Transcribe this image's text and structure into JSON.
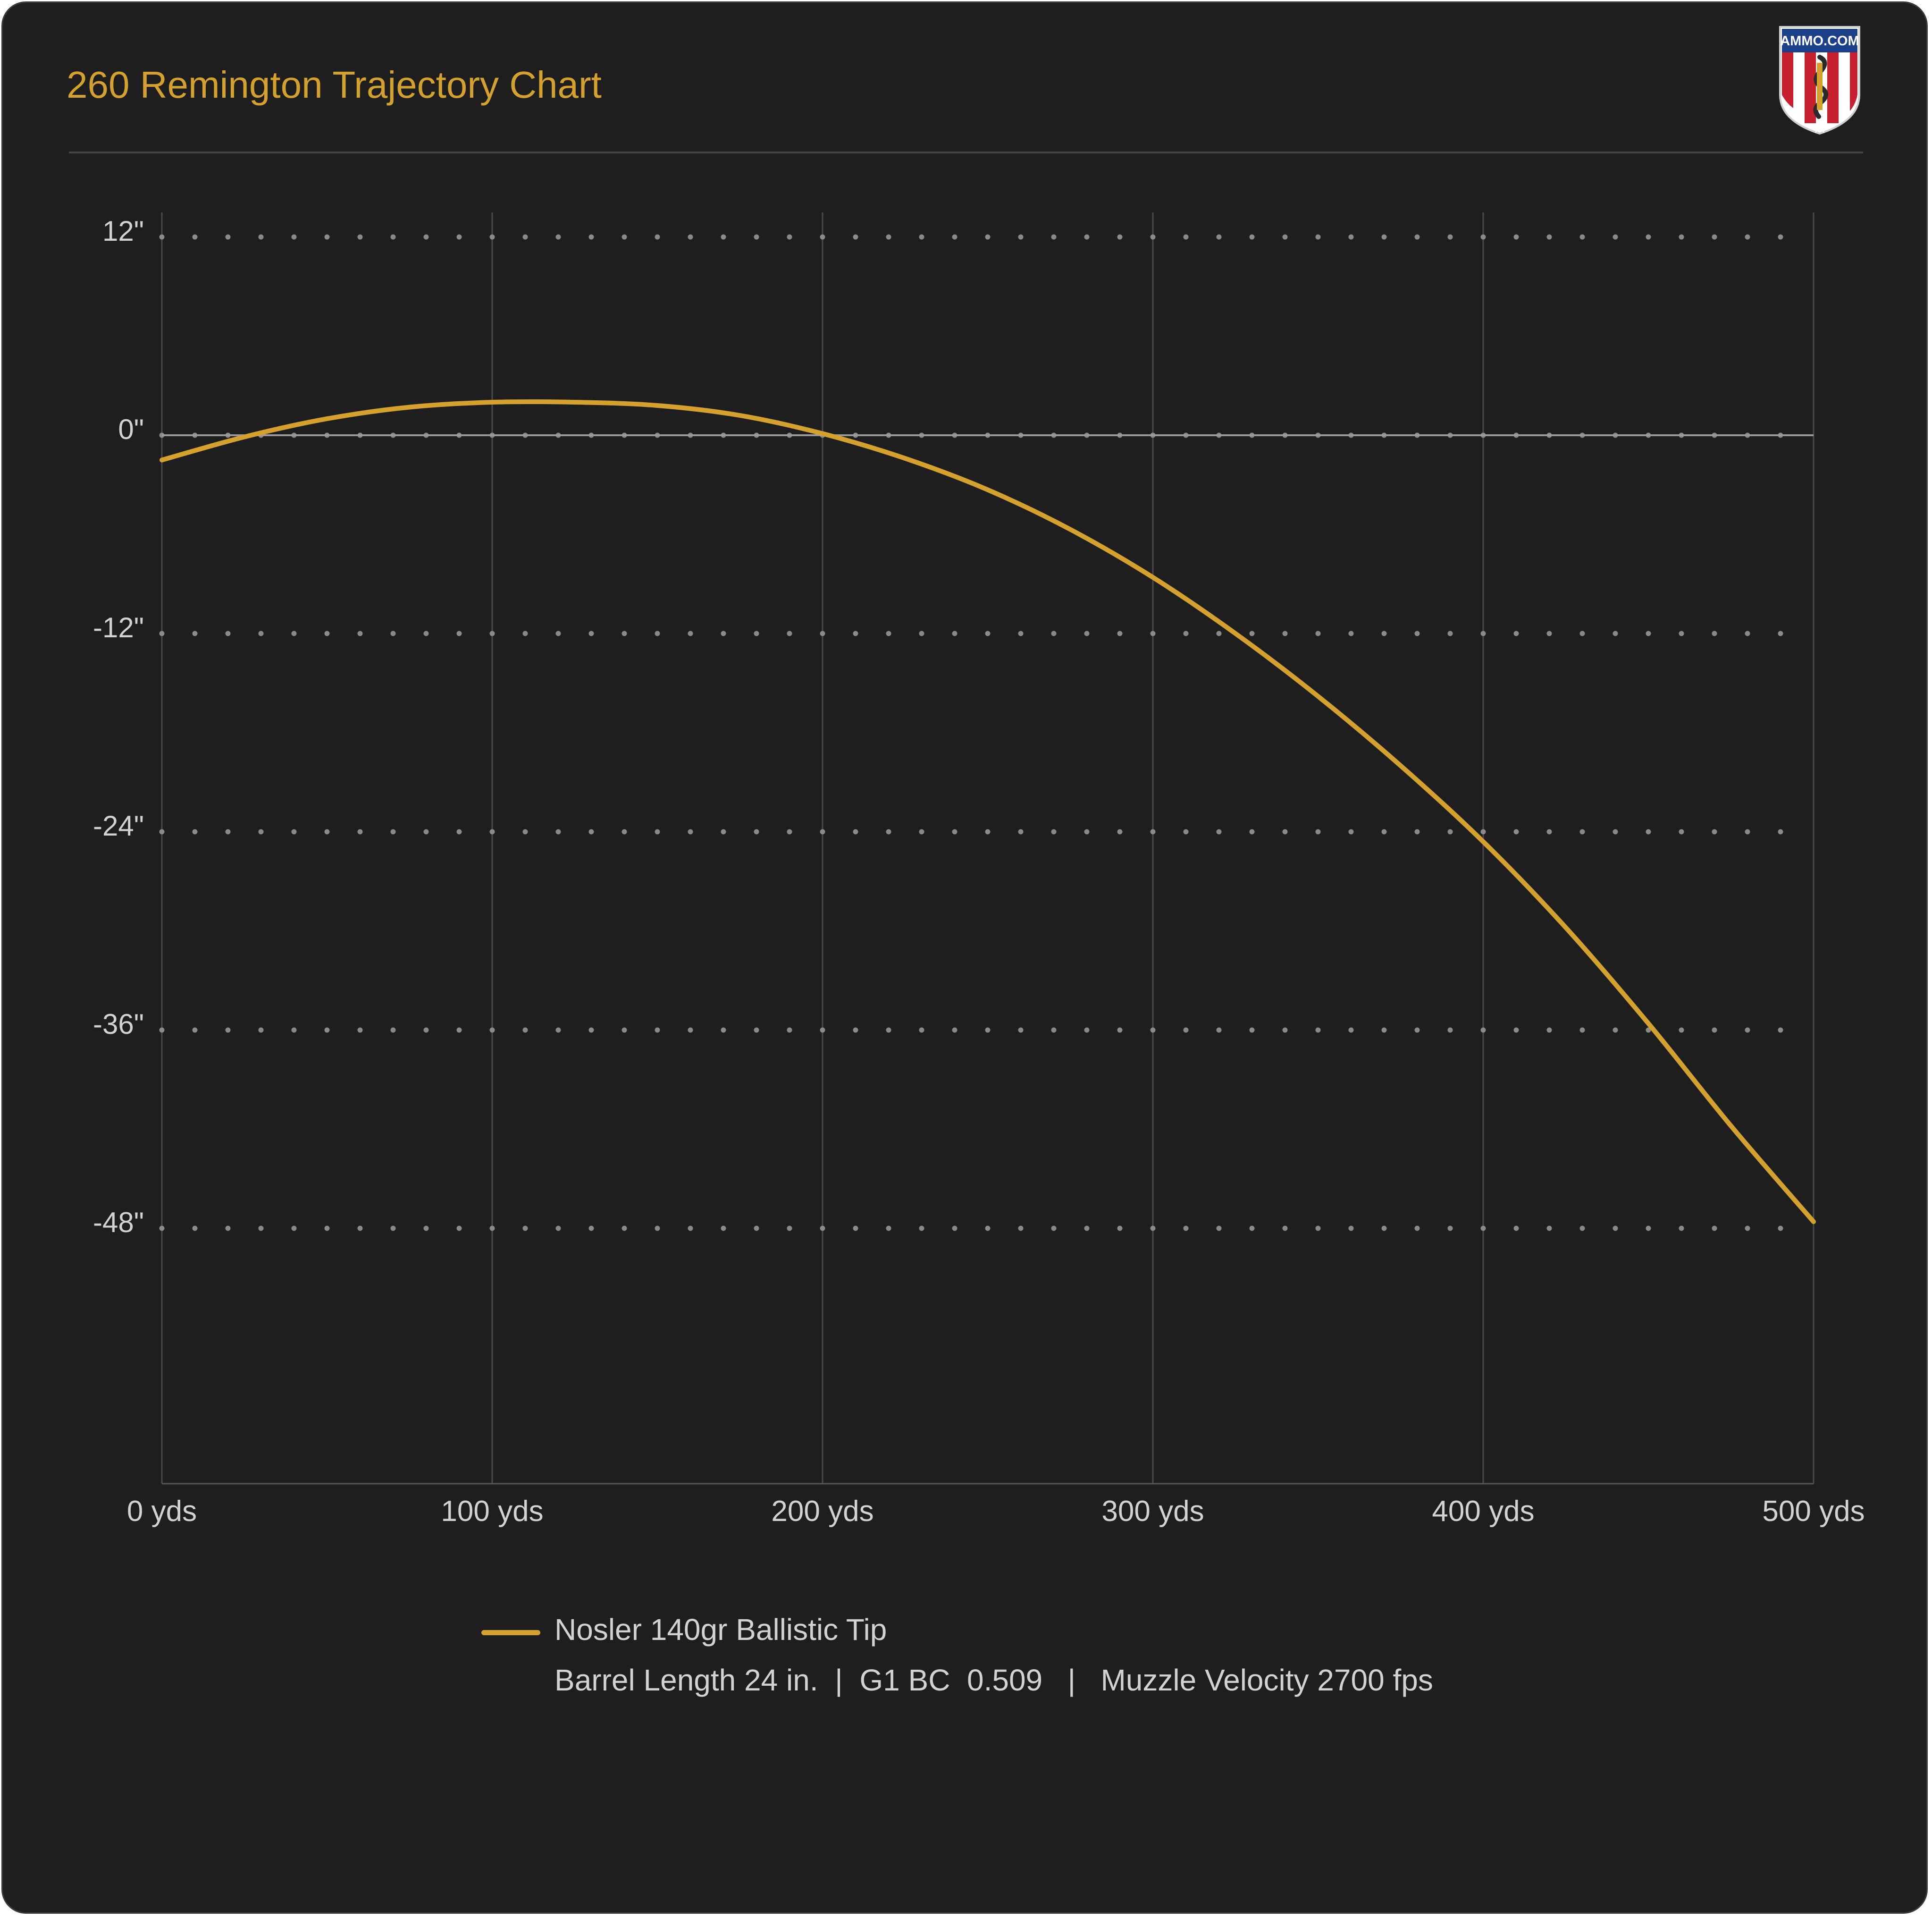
{
  "header": {
    "title": "260 Remington Trajectory Chart",
    "logo_text": "AMMO.COM",
    "logo_icon": "ammo-com-shield-logo"
  },
  "colors": {
    "background": "#1e1e1e",
    "accent": "#d4a12e",
    "text": "#d2d2d2",
    "grid": "#4a4a4a"
  },
  "chart_data": {
    "type": "line",
    "title": "260 Remington Trajectory Chart",
    "xlabel": "",
    "ylabel": "",
    "xlim": [
      0,
      500
    ],
    "ylim": [
      -57,
      13.5
    ],
    "x_ticks": [
      0,
      100,
      200,
      300,
      400,
      500
    ],
    "x_tick_labels": [
      "0 yds",
      "100 yds",
      "200 yds",
      "300 yds",
      "400 yds",
      "500 yds"
    ],
    "y_ticks": [
      12,
      0,
      -12,
      -24,
      -36,
      -48
    ],
    "y_tick_labels": [
      "12\"",
      "0\"",
      "-12\"",
      "-24\"",
      "-36\"",
      "-48\""
    ],
    "grid": {
      "vertical": true,
      "horizontal_dotted": true,
      "zero_line": true
    },
    "legend_position": "bottom-center",
    "series": [
      {
        "name": "Nosler 140gr Ballistic Tip",
        "color": "#d4a12e",
        "x": [
          0,
          25,
          50,
          75,
          100,
          125,
          150,
          175,
          200,
          225,
          250,
          275,
          300,
          325,
          350,
          375,
          400,
          425,
          450,
          475,
          500
        ],
        "y": [
          -1.5,
          -0.1,
          1.0,
          1.7,
          2.0,
          2.0,
          1.8,
          1.2,
          0.1,
          -1.4,
          -3.3,
          -5.7,
          -8.6,
          -12.0,
          -15.8,
          -20.0,
          -24.6,
          -29.8,
          -35.6,
          -41.8,
          -47.6
        ]
      }
    ]
  },
  "legend": {
    "series_label": "Nosler 140gr Ballistic Tip",
    "details": "Barrel Length 24 in.  |  G1 BC  0.509   |   Muzzle Velocity 2700 fps"
  }
}
